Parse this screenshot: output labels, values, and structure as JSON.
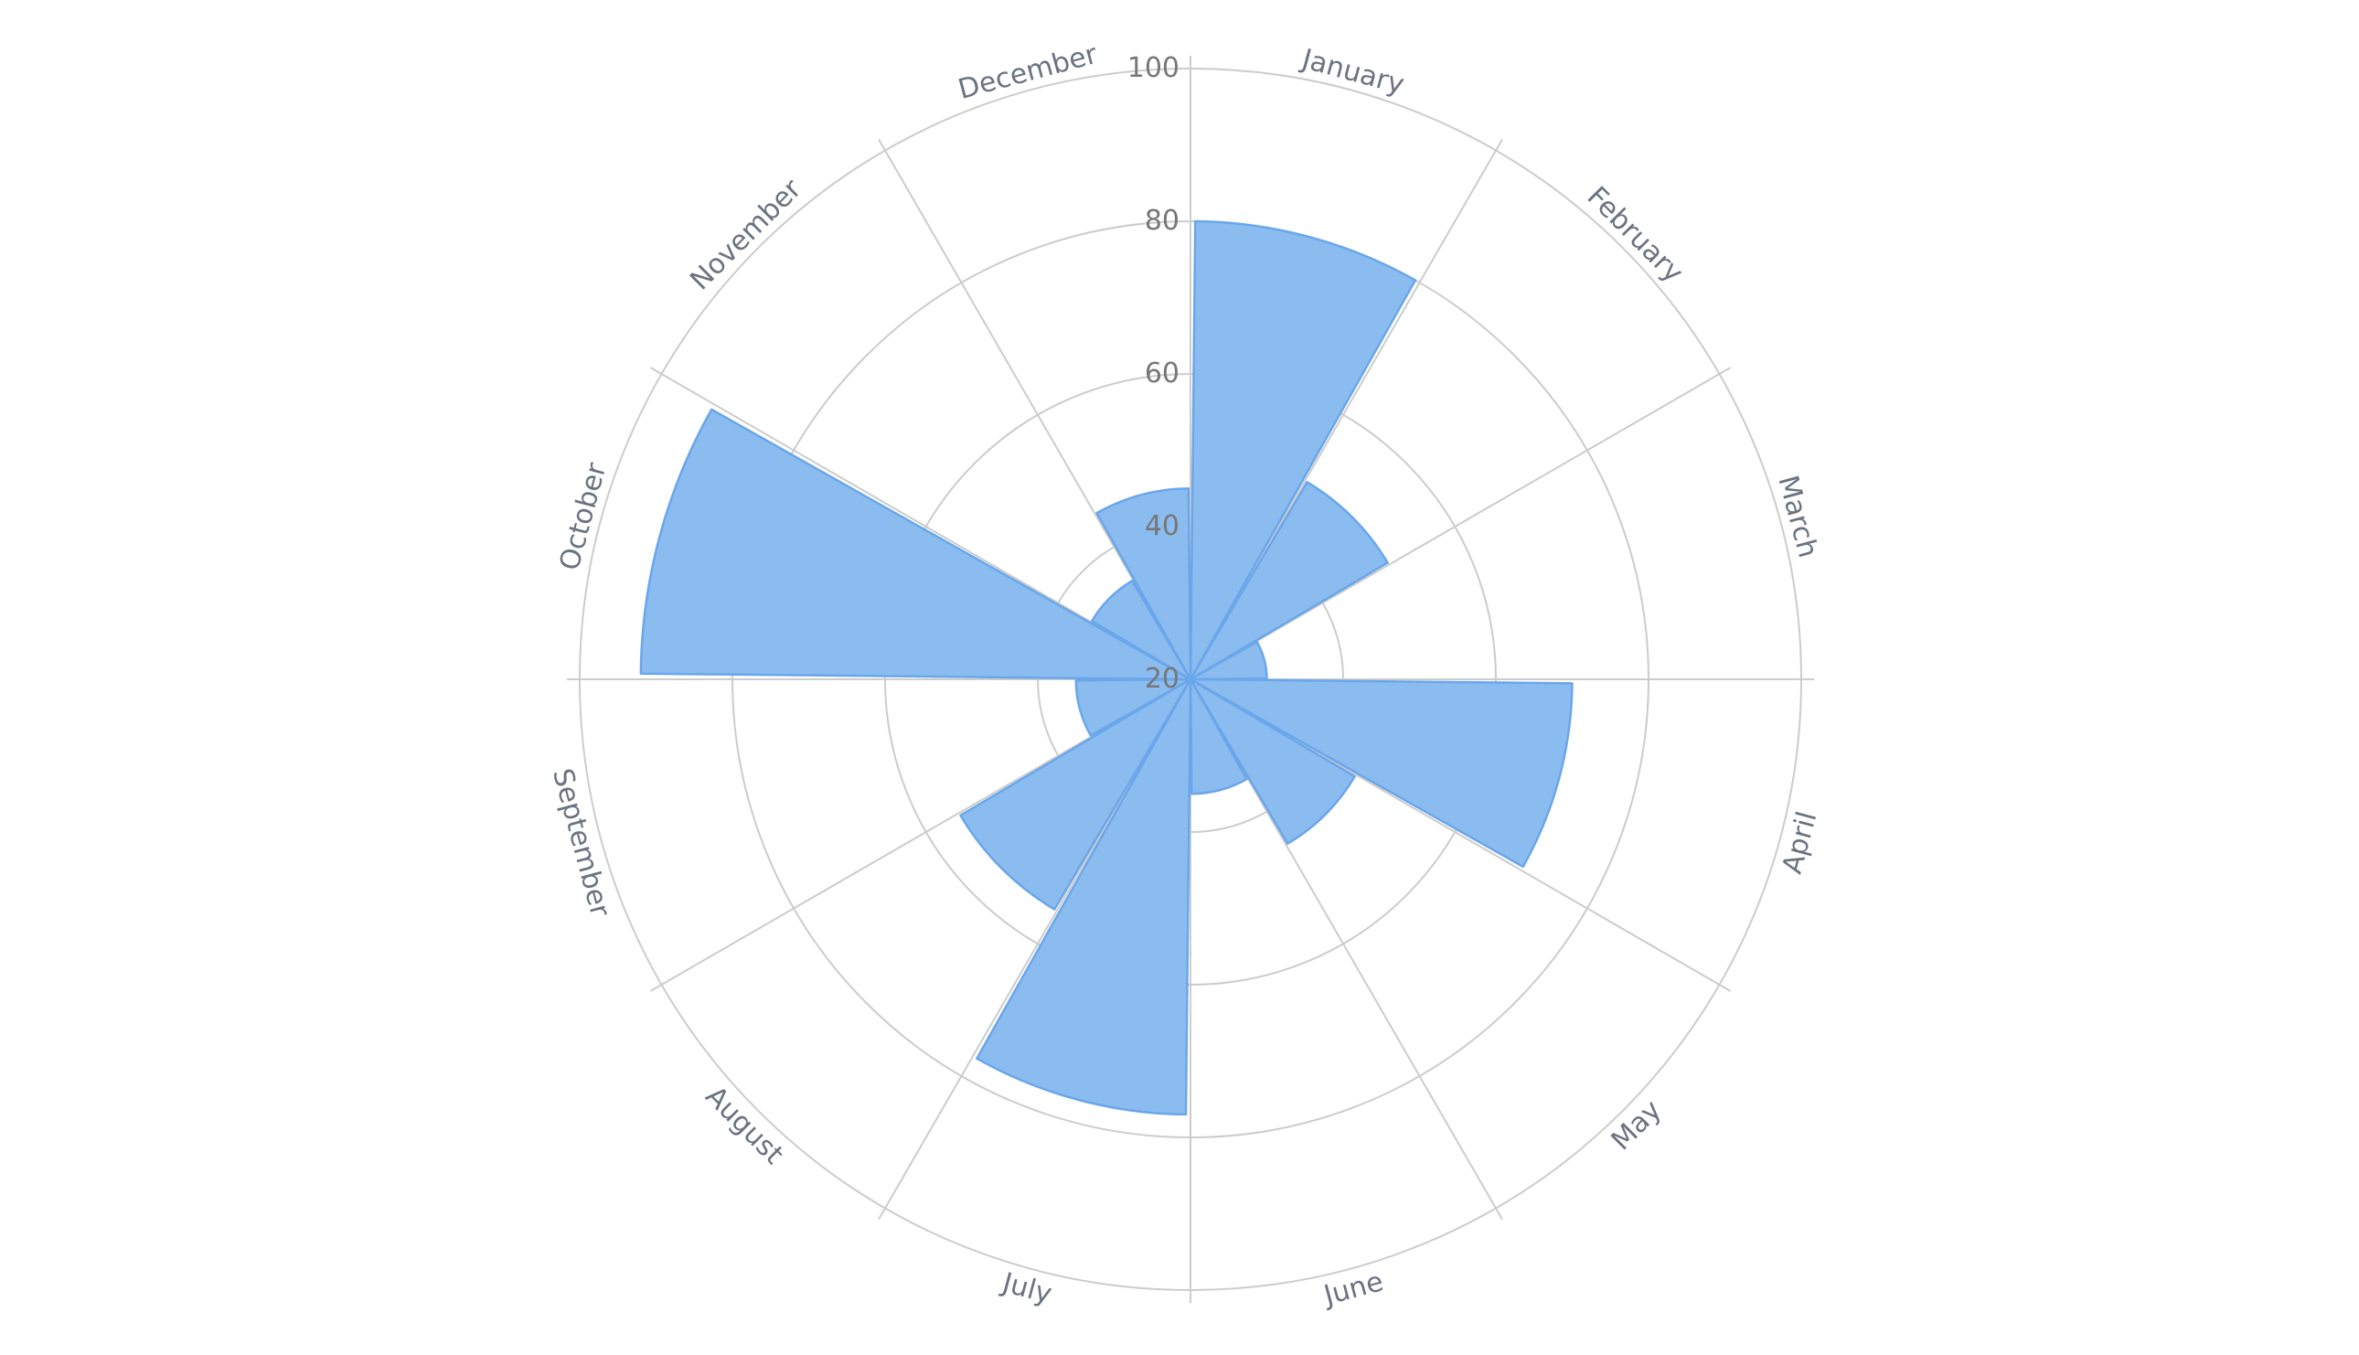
{
  "chart_data": {
    "type": "bar",
    "subtype": "polar-rose",
    "title": "",
    "categories": [
      "January",
      "February",
      "March",
      "April",
      "May",
      "June",
      "July",
      "August",
      "September",
      "October",
      "November",
      "December"
    ],
    "values": [
      80,
      50,
      30,
      70,
      45,
      35,
      77,
      55,
      35,
      92,
      35,
      45
    ],
    "radial_axis": {
      "range": [
        20,
        100
      ],
      "tick_values": [
        20,
        40,
        60,
        80,
        100
      ],
      "tick_labels": [
        "20",
        "40",
        "60",
        "80",
        "100"
      ]
    },
    "angular_axis": {
      "direction": "clockwise",
      "start": "top"
    },
    "grid": true,
    "legend": false,
    "colors": {
      "bar_fill": "#8bbcf0",
      "bar_stroke": "#6aa6ea",
      "grid": "#cccccc",
      "label": "#6b7280",
      "tick_label": "#777777"
    }
  }
}
